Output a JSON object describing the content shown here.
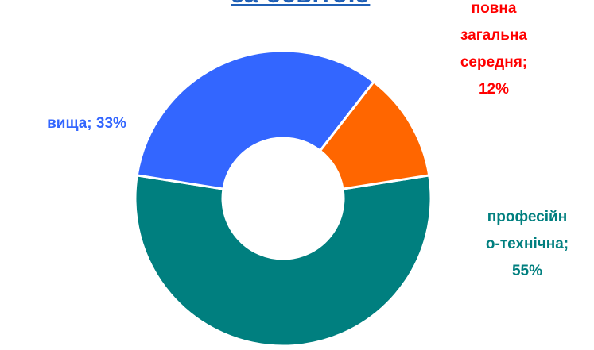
{
  "chart_data": {
    "type": "pie",
    "title": "за освітою",
    "series": [
      {
        "categories": [
          "професійно-технічна",
          "вища",
          "повна загальна середня"
        ],
        "values": [
          55,
          33,
          12
        ],
        "colors": [
          "#007F7F",
          "#3366FF",
          "#FF6600"
        ]
      }
    ],
    "labels": [
      {
        "text": "вища; 33%",
        "color": "#3366FF"
      },
      {
        "text": "повна\nзагальна\nсередня;\n12%",
        "color": "#FF0000"
      },
      {
        "text": "професійн\nо-технічна;\n55%",
        "color": "#007F7F"
      }
    ],
    "donut": true,
    "legend": "none"
  }
}
